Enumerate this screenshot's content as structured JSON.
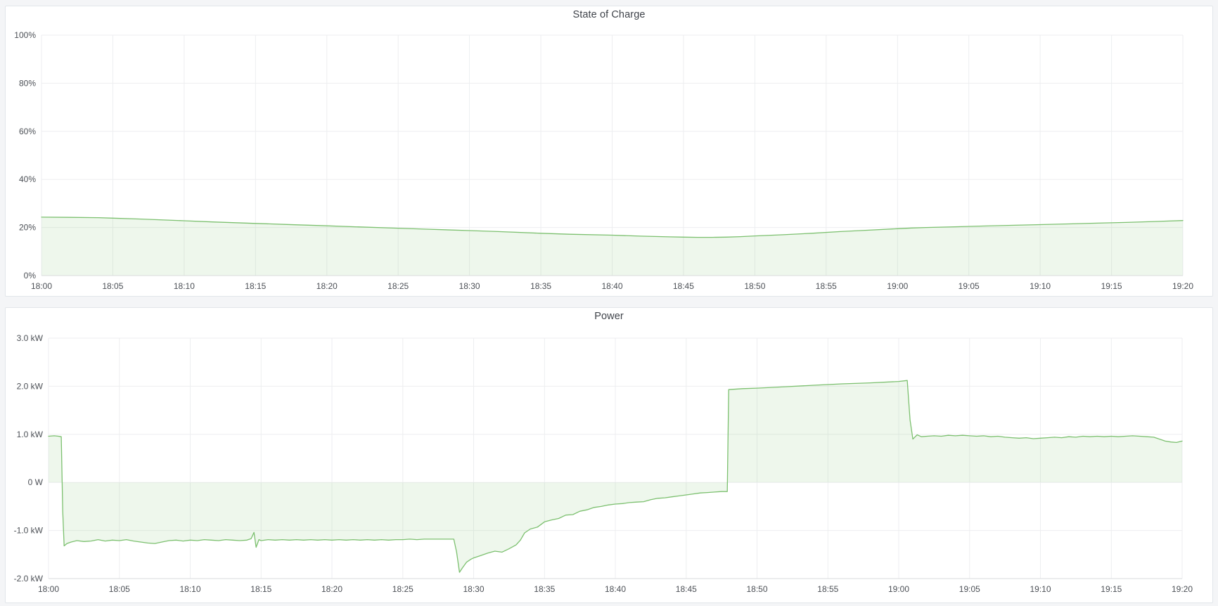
{
  "page": {
    "background": "#f4f5f7",
    "panel_background": "#ffffff",
    "panel_border": "#e2e6ea"
  },
  "chart_data": [
    {
      "type": "area",
      "title": "State of Charge",
      "ylabel": "",
      "xlabel": "",
      "unit": "percent",
      "line_color": "#7cc06f",
      "fill_color": "rgba(124,192,111,0.13)",
      "legend": "none",
      "grid": true,
      "xlim": [
        0,
        80
      ],
      "ylim": [
        0,
        100
      ],
      "baseline": 0,
      "x_ticks": [
        {
          "minute": 0,
          "label": "18:00"
        },
        {
          "minute": 5,
          "label": "18:05"
        },
        {
          "minute": 10,
          "label": "18:10"
        },
        {
          "minute": 15,
          "label": "18:15"
        },
        {
          "minute": 20,
          "label": "18:20"
        },
        {
          "minute": 25,
          "label": "18:25"
        },
        {
          "minute": 30,
          "label": "18:30"
        },
        {
          "minute": 35,
          "label": "18:35"
        },
        {
          "minute": 40,
          "label": "18:40"
        },
        {
          "minute": 45,
          "label": "18:45"
        },
        {
          "minute": 50,
          "label": "18:50"
        },
        {
          "minute": 55,
          "label": "18:55"
        },
        {
          "minute": 60,
          "label": "19:00"
        },
        {
          "minute": 65,
          "label": "19:05"
        },
        {
          "minute": 70,
          "label": "19:10"
        },
        {
          "minute": 75,
          "label": "19:15"
        },
        {
          "minute": 80,
          "label": "19:20"
        }
      ],
      "y_ticks": [
        {
          "value": 100,
          "label": "100%"
        },
        {
          "value": 80,
          "label": "80%"
        },
        {
          "value": 60,
          "label": "60%"
        },
        {
          "value": 40,
          "label": "40%"
        },
        {
          "value": 20,
          "label": "20%"
        },
        {
          "value": 0,
          "label": "0%"
        }
      ],
      "series": [
        {
          "name": "State of Charge",
          "points": [
            [
              0,
              24.3
            ],
            [
              2,
              24.2
            ],
            [
              4,
              24.1
            ],
            [
              5,
              23.9
            ],
            [
              7,
              23.5
            ],
            [
              10,
              22.8
            ],
            [
              12,
              22.3
            ],
            [
              15,
              21.7
            ],
            [
              17,
              21.3
            ],
            [
              20,
              20.7
            ],
            [
              22,
              20.3
            ],
            [
              25,
              19.7
            ],
            [
              27,
              19.3
            ],
            [
              30,
              18.7
            ],
            [
              32,
              18.3
            ],
            [
              35,
              17.6
            ],
            [
              37,
              17.2
            ],
            [
              40,
              16.8
            ],
            [
              42,
              16.4
            ],
            [
              44,
              16.1
            ],
            [
              45,
              16.0
            ],
            [
              46,
              15.9
            ],
            [
              47,
              15.9
            ],
            [
              48,
              16.0
            ],
            [
              49,
              16.2
            ],
            [
              50,
              16.5
            ],
            [
              52,
              17.0
            ],
            [
              54,
              17.6
            ],
            [
              56,
              18.3
            ],
            [
              58,
              18.9
            ],
            [
              60,
              19.5
            ],
            [
              61,
              19.8
            ],
            [
              62,
              20.0
            ],
            [
              64,
              20.3
            ],
            [
              66,
              20.6
            ],
            [
              68,
              20.9
            ],
            [
              70,
              21.2
            ],
            [
              72,
              21.5
            ],
            [
              74,
              21.8
            ],
            [
              76,
              22.1
            ],
            [
              78,
              22.5
            ],
            [
              80,
              22.9
            ]
          ]
        }
      ]
    },
    {
      "type": "area",
      "title": "Power",
      "ylabel": "",
      "xlabel": "",
      "unit": "kW",
      "line_color": "#7cc06f",
      "fill_color": "rgba(124,192,111,0.13)",
      "legend": "none",
      "grid": true,
      "xlim": [
        0,
        80
      ],
      "ylim": [
        -2,
        3
      ],
      "baseline": 0,
      "x_ticks": [
        {
          "minute": 0,
          "label": "18:00"
        },
        {
          "minute": 5,
          "label": "18:05"
        },
        {
          "minute": 10,
          "label": "18:10"
        },
        {
          "minute": 15,
          "label": "18:15"
        },
        {
          "minute": 20,
          "label": "18:20"
        },
        {
          "minute": 25,
          "label": "18:25"
        },
        {
          "minute": 30,
          "label": "18:30"
        },
        {
          "minute": 35,
          "label": "18:35"
        },
        {
          "minute": 40,
          "label": "18:40"
        },
        {
          "minute": 45,
          "label": "18:45"
        },
        {
          "minute": 50,
          "label": "18:50"
        },
        {
          "minute": 55,
          "label": "18:55"
        },
        {
          "minute": 60,
          "label": "19:00"
        },
        {
          "minute": 65,
          "label": "19:05"
        },
        {
          "minute": 70,
          "label": "19:10"
        },
        {
          "minute": 75,
          "label": "19:15"
        },
        {
          "minute": 80,
          "label": "19:20"
        }
      ],
      "y_ticks": [
        {
          "value": 3,
          "label": "3.0 kW"
        },
        {
          "value": 2,
          "label": "2.0 kW"
        },
        {
          "value": 1,
          "label": "1.0 kW"
        },
        {
          "value": 0,
          "label": "0 W"
        },
        {
          "value": -1,
          "label": "-1.0 kW"
        },
        {
          "value": -2,
          "label": "-2.0 kW"
        }
      ],
      "series": [
        {
          "name": "Power",
          "points": [
            [
              0,
              0.96
            ],
            [
              0.4,
              0.97
            ],
            [
              0.7,
              0.96
            ],
            [
              0.9,
              0.95
            ],
            [
              1.0,
              -0.6
            ],
            [
              1.1,
              -1.32
            ],
            [
              1.3,
              -1.27
            ],
            [
              1.6,
              -1.24
            ],
            [
              2,
              -1.21
            ],
            [
              2.5,
              -1.23
            ],
            [
              3,
              -1.22
            ],
            [
              3.5,
              -1.19
            ],
            [
              4,
              -1.22
            ],
            [
              4.5,
              -1.2
            ],
            [
              5,
              -1.21
            ],
            [
              5.5,
              -1.19
            ],
            [
              6,
              -1.22
            ],
            [
              6.5,
              -1.24
            ],
            [
              7,
              -1.26
            ],
            [
              7.5,
              -1.27
            ],
            [
              8,
              -1.24
            ],
            [
              8.5,
              -1.21
            ],
            [
              9,
              -1.2
            ],
            [
              9.5,
              -1.22
            ],
            [
              10,
              -1.2
            ],
            [
              10.5,
              -1.21
            ],
            [
              11,
              -1.19
            ],
            [
              11.5,
              -1.2
            ],
            [
              12,
              -1.21
            ],
            [
              12.5,
              -1.19
            ],
            [
              13,
              -1.2
            ],
            [
              13.5,
              -1.21
            ],
            [
              14,
              -1.2
            ],
            [
              14.3,
              -1.17
            ],
            [
              14.5,
              -1.04
            ],
            [
              14.65,
              -1.35
            ],
            [
              14.85,
              -1.19
            ],
            [
              15,
              -1.21
            ],
            [
              15.5,
              -1.19
            ],
            [
              16,
              -1.2
            ],
            [
              16.5,
              -1.19
            ],
            [
              17,
              -1.2
            ],
            [
              17.5,
              -1.19
            ],
            [
              18,
              -1.2
            ],
            [
              18.5,
              -1.19
            ],
            [
              19,
              -1.2
            ],
            [
              19.5,
              -1.19
            ],
            [
              20,
              -1.2
            ],
            [
              20.5,
              -1.19
            ],
            [
              21,
              -1.2
            ],
            [
              21.5,
              -1.19
            ],
            [
              22,
              -1.2
            ],
            [
              22.5,
              -1.19
            ],
            [
              23,
              -1.2
            ],
            [
              23.5,
              -1.19
            ],
            [
              24,
              -1.2
            ],
            [
              24.5,
              -1.19
            ],
            [
              25,
              -1.19
            ],
            [
              25.5,
              -1.18
            ],
            [
              26,
              -1.19
            ],
            [
              26.5,
              -1.18
            ],
            [
              27,
              -1.18
            ],
            [
              27.5,
              -1.18
            ],
            [
              28,
              -1.18
            ],
            [
              28.6,
              -1.18
            ],
            [
              28.8,
              -1.45
            ],
            [
              29.0,
              -1.87
            ],
            [
              29.2,
              -1.78
            ],
            [
              29.5,
              -1.66
            ],
            [
              29.8,
              -1.6
            ],
            [
              30,
              -1.57
            ],
            [
              30.5,
              -1.52
            ],
            [
              31,
              -1.47
            ],
            [
              31.5,
              -1.43
            ],
            [
              32,
              -1.45
            ],
            [
              32.5,
              -1.38
            ],
            [
              33,
              -1.3
            ],
            [
              33.3,
              -1.2
            ],
            [
              33.6,
              -1.05
            ],
            [
              34,
              -0.97
            ],
            [
              34.5,
              -0.93
            ],
            [
              35,
              -0.82
            ],
            [
              35.5,
              -0.78
            ],
            [
              36,
              -0.75
            ],
            [
              36.5,
              -0.68
            ],
            [
              37,
              -0.67
            ],
            [
              37.5,
              -0.6
            ],
            [
              38,
              -0.57
            ],
            [
              38.5,
              -0.52
            ],
            [
              39,
              -0.5
            ],
            [
              39.5,
              -0.47
            ],
            [
              40,
              -0.45
            ],
            [
              40.5,
              -0.44
            ],
            [
              41,
              -0.42
            ],
            [
              41.5,
              -0.41
            ],
            [
              42,
              -0.4
            ],
            [
              42.5,
              -0.36
            ],
            [
              43,
              -0.33
            ],
            [
              43.5,
              -0.32
            ],
            [
              44,
              -0.3
            ],
            [
              44.5,
              -0.28
            ],
            [
              45,
              -0.26
            ],
            [
              45.5,
              -0.24
            ],
            [
              46,
              -0.22
            ],
            [
              46.5,
              -0.21
            ],
            [
              47,
              -0.2
            ],
            [
              47.5,
              -0.19
            ],
            [
              47.9,
              -0.19
            ],
            [
              48.0,
              1.93
            ],
            [
              49,
              1.95
            ],
            [
              50,
              1.96
            ],
            [
              52,
              1.99
            ],
            [
              54,
              2.02
            ],
            [
              56,
              2.05
            ],
            [
              58,
              2.07
            ],
            [
              60,
              2.1
            ],
            [
              60.6,
              2.12
            ],
            [
              60.8,
              1.3
            ],
            [
              61,
              0.9
            ],
            [
              61.3,
              0.99
            ],
            [
              61.6,
              0.95
            ],
            [
              62,
              0.96
            ],
            [
              62.5,
              0.97
            ],
            [
              63,
              0.96
            ],
            [
              63.5,
              0.98
            ],
            [
              64,
              0.97
            ],
            [
              64.5,
              0.98
            ],
            [
              65,
              0.97
            ],
            [
              65.5,
              0.96
            ],
            [
              66,
              0.97
            ],
            [
              66.5,
              0.95
            ],
            [
              67,
              0.96
            ],
            [
              67.5,
              0.94
            ],
            [
              68,
              0.93
            ],
            [
              68.5,
              0.92
            ],
            [
              69,
              0.93
            ],
            [
              69.5,
              0.91
            ],
            [
              70,
              0.92
            ],
            [
              70.5,
              0.93
            ],
            [
              71,
              0.94
            ],
            [
              71.5,
              0.93
            ],
            [
              72,
              0.95
            ],
            [
              72.5,
              0.94
            ],
            [
              73,
              0.96
            ],
            [
              73.5,
              0.95
            ],
            [
              74,
              0.96
            ],
            [
              74.5,
              0.95
            ],
            [
              75,
              0.96
            ],
            [
              75.5,
              0.95
            ],
            [
              76,
              0.96
            ],
            [
              76.5,
              0.97
            ],
            [
              77,
              0.96
            ],
            [
              77.5,
              0.95
            ],
            [
              78,
              0.94
            ],
            [
              78.4,
              0.9
            ],
            [
              78.8,
              0.86
            ],
            [
              79.2,
              0.84
            ],
            [
              79.6,
              0.83
            ],
            [
              80,
              0.86
            ]
          ]
        }
      ]
    }
  ]
}
